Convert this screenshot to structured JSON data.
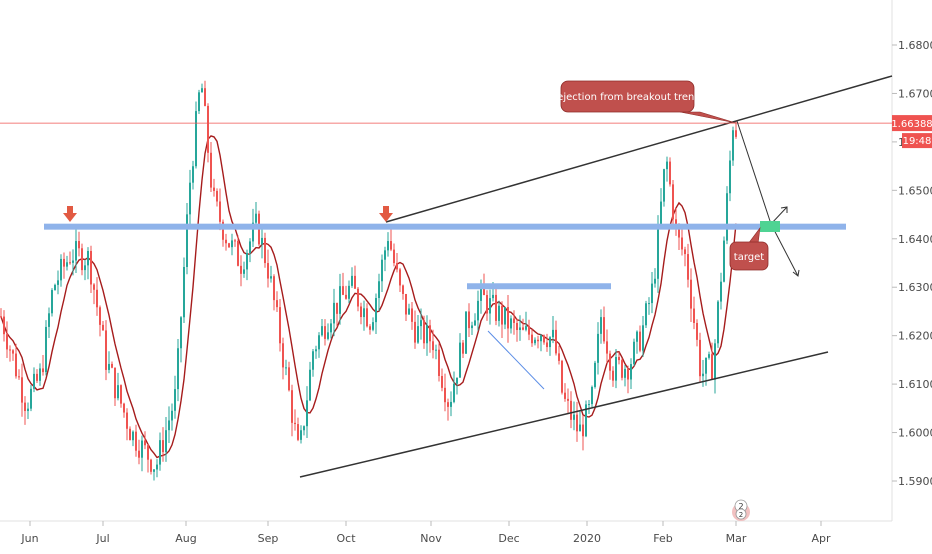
{
  "chart_data": {
    "type": "candlestick",
    "symbol_price_badge": "1.66388",
    "countdown_badge": "19:48",
    "y_axis": {
      "ylim": [
        1.583,
        1.689
      ],
      "ticks": [
        "1.59000",
        "1.60000",
        "1.61000",
        "1.62000",
        "1.63000",
        "1.64000",
        "1.65000",
        "1.66000",
        "1.67000",
        "1.68000"
      ]
    },
    "x_axis": {
      "ticks": [
        "Jun",
        "Jul",
        "Aug",
        "Sep",
        "Oct",
        "Nov",
        "Dec",
        "2020",
        "Feb",
        "Mar",
        "Apr"
      ]
    },
    "current_price": 1.66388,
    "resistance_level": 1.6425,
    "range_top_level": 1.6302,
    "annotations": {
      "rejection": "rejection from breakout trend",
      "target": "target"
    },
    "colors": {
      "up": "#26a69a",
      "down": "#ef5350",
      "ma": "#a61c1c",
      "level": "#8fb3ea",
      "trend": "#333333",
      "price_line": "#ef5350",
      "label_fill": "#c0504d",
      "target_box": "#4fd393"
    },
    "price_anchors": [
      [
        0,
        1.624
      ],
      [
        25,
        1.606
      ],
      [
        40,
        1.612
      ],
      [
        52,
        1.63
      ],
      [
        70,
        1.637
      ],
      [
        88,
        1.636
      ],
      [
        105,
        1.615
      ],
      [
        130,
        1.6
      ],
      [
        155,
        1.593
      ],
      [
        175,
        1.608
      ],
      [
        188,
        1.65
      ],
      [
        200,
        1.673
      ],
      [
        212,
        1.648
      ],
      [
        226,
        1.64
      ],
      [
        240,
        1.635
      ],
      [
        256,
        1.643
      ],
      [
        268,
        1.633
      ],
      [
        285,
        1.612
      ],
      [
        298,
        1.595
      ],
      [
        312,
        1.617
      ],
      [
        330,
        1.625
      ],
      [
        350,
        1.63
      ],
      [
        370,
        1.623
      ],
      [
        387,
        1.641
      ],
      [
        400,
        1.628
      ],
      [
        415,
        1.621
      ],
      [
        432,
        1.619
      ],
      [
        448,
        1.606
      ],
      [
        465,
        1.622
      ],
      [
        480,
        1.628
      ],
      [
        500,
        1.624
      ],
      [
        520,
        1.62
      ],
      [
        540,
        1.621
      ],
      [
        553,
        1.619
      ],
      [
        562,
        1.607
      ],
      [
        578,
        1.6
      ],
      [
        590,
        1.605
      ],
      [
        600,
        1.624
      ],
      [
        612,
        1.613
      ],
      [
        628,
        1.614
      ],
      [
        640,
        1.62
      ],
      [
        652,
        1.63
      ],
      [
        665,
        1.657
      ],
      [
        676,
        1.64
      ],
      [
        685,
        1.636
      ],
      [
        700,
        1.612
      ],
      [
        712,
        1.614
      ],
      [
        722,
        1.637
      ],
      [
        732,
        1.664
      ],
      [
        736,
        1.662
      ]
    ]
  }
}
